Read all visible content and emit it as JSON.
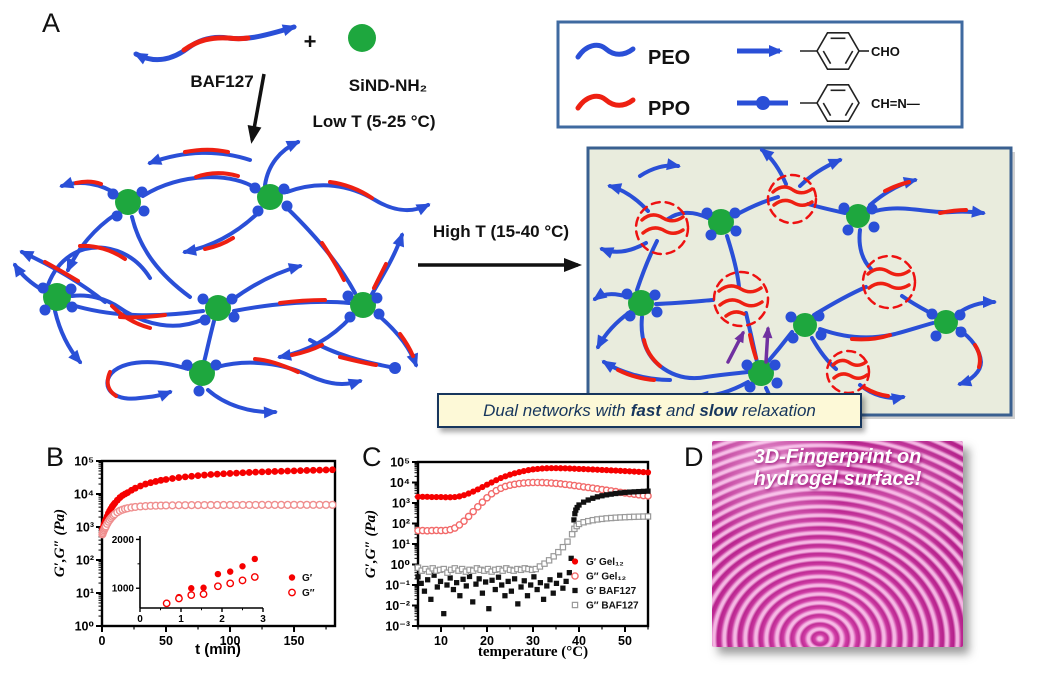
{
  "panels": {
    "a": {
      "label": "A",
      "molecule_label": "BAF127",
      "plus_sign": "+",
      "nanoparticle_label": "SiND-NH₂",
      "low_t_label": "Low T (5-25 °C)",
      "high_t_label": "High T (15-40 °C)",
      "legend_box": {
        "peo": "PEO",
        "ppo": "PPO",
        "aldehyde": "CHO",
        "imine": "CH=N—"
      },
      "caption": {
        "pre": "Dual networks with",
        "fast": "fast",
        "mid": "and",
        "slow": "slow",
        "post": "relaxation"
      }
    },
    "b": {
      "label": "B"
    },
    "c": {
      "label": "C"
    },
    "d": {
      "label": "D",
      "line1": "3D-Fingerprint on",
      "line2": "hydrogel surface!"
    }
  },
  "colors": {
    "peo_blue": "#2a4fd7",
    "ppo_red": "#ee2012",
    "nanoparticle_green": "#1ea73e",
    "purple": "#7030a0",
    "network_box_bg": "#e9ecdd",
    "network_box_border": "#3a6090",
    "legend_box_border": "#3f6aa0",
    "caption_bg": "#fdf9d7",
    "caption_text": "#17365d",
    "chart_red": "#f60000",
    "chart_pink": "#ef8e8e",
    "chart_black": "#111111",
    "chart_gray": "#999999",
    "fingerprint_pink": "#d02ea2"
  },
  "chart_data": [
    {
      "id": "B",
      "type": "scatter",
      "xlabel": "t (min)",
      "ylabel": "G′,G″ (Pa)",
      "xlim": [
        0,
        182
      ],
      "xticks": [
        0,
        50,
        100,
        150
      ],
      "xminor": 25,
      "ylog_exp": [
        0,
        5
      ],
      "grid": false,
      "legend_position": "inset-right",
      "series": [
        {
          "name": "G′",
          "marker": "circle",
          "fill": true,
          "color": "#f60000",
          "x": [
            0.3,
            0.6,
            1,
            1.5,
            2,
            2.5,
            3,
            4,
            5,
            6,
            7,
            8,
            9,
            10,
            12,
            14,
            16,
            18,
            20,
            23,
            26,
            30,
            34,
            38,
            42,
            46,
            50,
            55,
            60,
            65,
            70,
            75,
            80,
            85,
            90,
            95,
            100,
            105,
            110,
            115,
            120,
            125,
            130,
            135,
            140,
            145,
            150,
            155,
            160,
            165,
            170,
            175,
            180
          ],
          "y": [
            850,
            900,
            1000,
            1150,
            1300,
            1500,
            1700,
            2100,
            2600,
            3100,
            3600,
            4200,
            4700,
            5300,
            6500,
            7800,
            9000,
            10000,
            11000,
            13000,
            15000,
            17500,
            20000,
            22000,
            24000,
            26000,
            27500,
            29500,
            31500,
            33000,
            34500,
            36000,
            37500,
            39000,
            40000,
            41000,
            42000,
            43000,
            44000,
            45000,
            46000,
            46800,
            47500,
            48200,
            49000,
            49700,
            50300,
            51000,
            51700,
            52300,
            53000,
            53600,
            54200
          ]
        },
        {
          "name": "G″",
          "marker": "circle",
          "fill": false,
          "color": "#ef8e8e",
          "x": [
            0.3,
            0.6,
            1,
            1.5,
            2,
            2.5,
            3,
            4,
            5,
            6,
            7,
            8,
            9,
            10,
            12,
            14,
            16,
            18,
            20,
            23,
            26,
            30,
            34,
            38,
            42,
            46,
            50,
            55,
            60,
            65,
            70,
            75,
            80,
            85,
            90,
            95,
            100,
            105,
            110,
            115,
            120,
            125,
            130,
            135,
            140,
            145,
            150,
            155,
            160,
            165,
            170,
            175,
            180
          ],
          "y": [
            600,
            650,
            720,
            800,
            880,
            960,
            1050,
            1250,
            1450,
            1650,
            1850,
            2050,
            2250,
            2450,
            2800,
            3100,
            3350,
            3550,
            3700,
            3900,
            4050,
            4200,
            4300,
            4380,
            4430,
            4470,
            4500,
            4530,
            4560,
            4580,
            4600,
            4610,
            4620,
            4630,
            4640,
            4650,
            4650,
            4660,
            4660,
            4670,
            4670,
            4680,
            4680,
            4680,
            4690,
            4690,
            4700,
            4700,
            4700,
            4700,
            4700,
            4700,
            4700
          ]
        }
      ],
      "inset": {
        "xlim": [
          0,
          3
        ],
        "xticks": [
          0,
          1,
          2,
          3
        ],
        "xminor": 0.5,
        "ylim": [
          595,
          2070
        ],
        "yticks": [
          1000,
          2000
        ],
        "yminor": 500,
        "series": [
          {
            "name": "G′",
            "marker": "circle",
            "fill": true,
            "color": "#f60000",
            "x": [
              0.65,
              0.95,
              1.25,
              1.55,
              1.9,
              2.2,
              2.5,
              2.8
            ],
            "y": [
              700,
              820,
              1000,
              1010,
              1290,
              1340,
              1450,
              1600
            ]
          },
          {
            "name": "G″",
            "marker": "circle",
            "fill": false,
            "color": "#f60000",
            "x": [
              0.65,
              0.95,
              1.25,
              1.55,
              1.9,
              2.2,
              2.5,
              2.8
            ],
            "y": [
              690,
              790,
              860,
              880,
              1040,
              1100,
              1160,
              1230
            ]
          }
        ]
      }
    },
    {
      "id": "C",
      "type": "scatter",
      "xlabel": "temperature (°C)",
      "ylabel": "G′,G″ (Pa)",
      "xlim": [
        5,
        55
      ],
      "xticks": [
        10,
        20,
        30,
        40,
        50
      ],
      "xminor": 5,
      "ylog_exp": [
        -3,
        5
      ],
      "grid": false,
      "legend_position": "right",
      "legend": [
        "G′  Gel₁₂",
        "G″ Gel₁₂",
        "G′  BAF127",
        "G″ BAF127"
      ],
      "series": [
        {
          "name": "G′  Gel₁₂",
          "marker": "circle",
          "fill": true,
          "color": "#f60000",
          "x": [
            5,
            6,
            7,
            8,
            9,
            10,
            11,
            12,
            13,
            14,
            15,
            16,
            17,
            18,
            19,
            20,
            21,
            22,
            23,
            24,
            25,
            26,
            27,
            28,
            29,
            30,
            31,
            32,
            33,
            34,
            35,
            36,
            37,
            38,
            39,
            40,
            41,
            42,
            43,
            44,
            45,
            46,
            47,
            48,
            49,
            50,
            51,
            52,
            53,
            54,
            55
          ],
          "y": [
            2000,
            2000,
            2000,
            1950,
            1950,
            1950,
            1900,
            1900,
            1950,
            2100,
            2400,
            2900,
            3600,
            4600,
            6000,
            7800,
            10000,
            13000,
            16500,
            20000,
            24000,
            28000,
            32000,
            36000,
            40000,
            43500,
            46000,
            48000,
            49500,
            50000,
            50000,
            49500,
            49000,
            48000,
            47000,
            46000,
            45000,
            44000,
            43000,
            42000,
            41000,
            40000,
            39000,
            38000,
            37000,
            36000,
            35000,
            34000,
            33000,
            32000,
            31000
          ]
        },
        {
          "name": "G″ Gel₁₂",
          "marker": "circle",
          "fill": false,
          "color": "#f26a6a",
          "x": [
            5,
            6,
            7,
            8,
            9,
            10,
            11,
            12,
            13,
            14,
            15,
            16,
            17,
            18,
            19,
            20,
            21,
            22,
            23,
            24,
            25,
            26,
            27,
            28,
            29,
            30,
            31,
            32,
            33,
            34,
            35,
            36,
            37,
            38,
            39,
            40,
            41,
            42,
            43,
            44,
            45,
            46,
            47,
            48,
            49,
            50,
            51,
            52,
            53,
            54,
            55
          ],
          "y": [
            45,
            45,
            44,
            45,
            46,
            45,
            46,
            50,
            60,
            85,
            130,
            220,
            380,
            650,
            1100,
            1800,
            2800,
            4000,
            5200,
            6400,
            7400,
            8200,
            8900,
            9400,
            9800,
            10000,
            10000,
            9900,
            9700,
            9400,
            9000,
            8600,
            8100,
            7600,
            7100,
            6600,
            6100,
            5700,
            5300,
            4900,
            4500,
            4200,
            3900,
            3600,
            3300,
            3100,
            2900,
            2700,
            2500,
            2300,
            2200
          ]
        },
        {
          "name": "G′  BAF127",
          "marker": "square",
          "fill": true,
          "color": "#111111",
          "x": [
            5,
            5.7,
            6.4,
            7.1,
            7.8,
            8.5,
            9.2,
            9.9,
            10.6,
            11.3,
            12,
            12.7,
            13.4,
            14.1,
            14.8,
            15.5,
            16.2,
            16.9,
            17.6,
            18.3,
            19,
            19.7,
            20.4,
            21.1,
            21.8,
            22.5,
            23.2,
            23.9,
            24.6,
            25.3,
            26,
            26.7,
            27.4,
            28.1,
            28.8,
            29.5,
            30.2,
            30.9,
            31.6,
            32.3,
            33,
            33.7,
            34.4,
            35.1,
            35.8,
            36.5,
            37.2,
            37.9,
            38.3,
            38.6,
            38.9,
            39.1,
            39.3,
            39.6,
            40,
            41,
            42,
            43,
            44,
            45,
            46,
            47,
            48,
            49,
            50,
            51,
            52,
            53,
            54,
            55
          ],
          "y": [
            0.25,
            0.12,
            0.05,
            0.18,
            0.02,
            0.3,
            0.08,
            0.15,
            0.004,
            0.1,
            0.22,
            0.06,
            0.13,
            0.03,
            0.19,
            0.09,
            0.26,
            0.015,
            0.11,
            0.2,
            0.04,
            0.14,
            0.007,
            0.17,
            0.06,
            0.24,
            0.1,
            0.03,
            0.15,
            0.05,
            0.2,
            0.012,
            0.08,
            0.16,
            0.03,
            0.1,
            0.25,
            0.06,
            0.13,
            0.02,
            0.09,
            0.18,
            0.04,
            0.12,
            0.3,
            0.07,
            0.15,
            0.4,
            2,
            30,
            150,
            300,
            450,
            600,
            800,
            1100,
            1400,
            1700,
            2000,
            2250,
            2500,
            2700,
            2900,
            3100,
            3250,
            3400,
            3500,
            3600,
            3700,
            3800
          ]
        },
        {
          "name": "G″ BAF127",
          "marker": "square",
          "fill": false,
          "color": "#999999",
          "x": [
            5,
            5.8,
            6.6,
            7.4,
            8.2,
            9,
            9.8,
            10.6,
            11.4,
            12.2,
            13,
            13.8,
            14.6,
            15.4,
            16.2,
            17,
            17.8,
            18.6,
            19.4,
            20.2,
            21,
            21.8,
            22.6,
            23.4,
            24.2,
            25,
            25.8,
            26.6,
            27.4,
            28.2,
            29,
            29.8,
            30.6,
            31.5,
            32.5,
            33.5,
            34.5,
            35.5,
            36.5,
            37.5,
            38.5,
            39,
            39.5,
            40,
            41,
            42,
            43,
            44,
            45,
            46,
            47,
            48,
            49,
            50,
            51,
            52,
            53,
            54,
            55
          ],
          "y": [
            0.7,
            0.5,
            0.6,
            0.45,
            0.65,
            0.5,
            0.55,
            0.6,
            0.4,
            0.55,
            0.65,
            0.5,
            0.6,
            0.45,
            0.55,
            0.5,
            0.65,
            0.55,
            0.5,
            0.6,
            0.45,
            0.55,
            0.6,
            0.5,
            0.65,
            0.55,
            0.5,
            0.6,
            0.55,
            0.65,
            0.6,
            0.55,
            0.6,
            0.8,
            1.1,
            1.6,
            2.5,
            4,
            7,
            13,
            30,
            55,
            75,
            95,
            115,
            130,
            145,
            158,
            168,
            178,
            185,
            192,
            198,
            203,
            208,
            212,
            215,
            218,
            220
          ]
        }
      ]
    }
  ]
}
